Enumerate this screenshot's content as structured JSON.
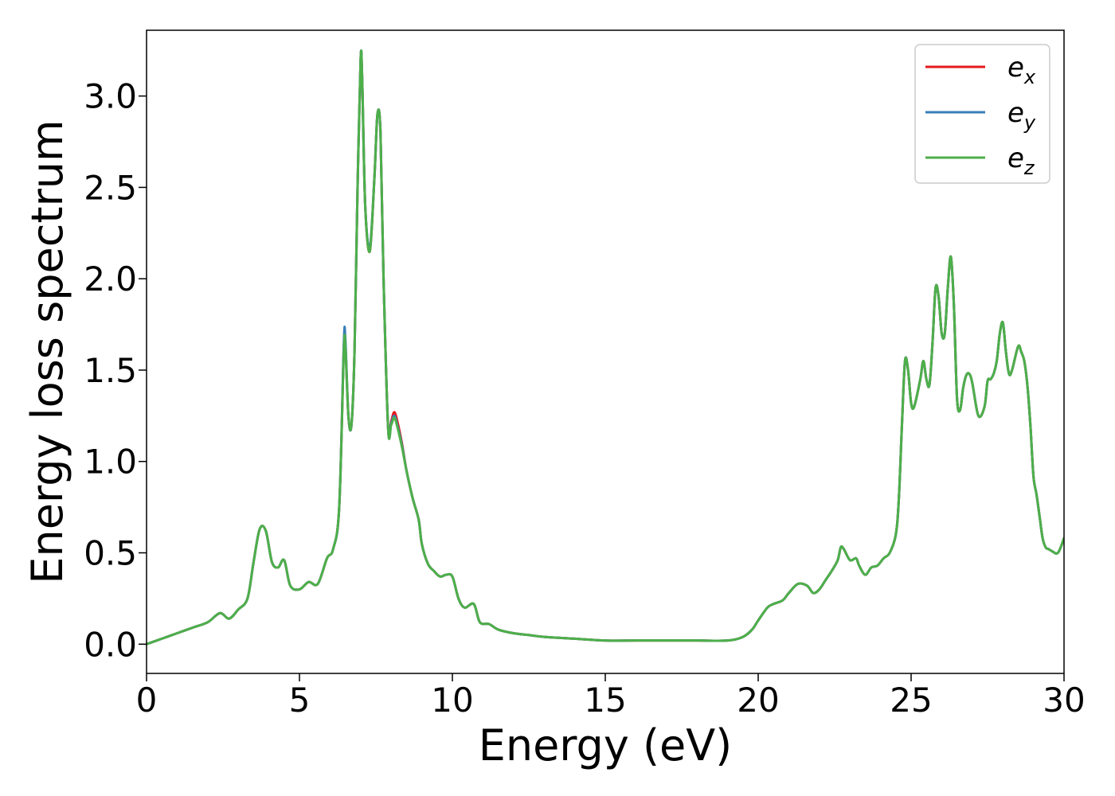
{
  "chart_data": {
    "type": "line",
    "xlabel": "Energy (eV)",
    "ylabel": "Energy loss spectrum",
    "xlim": [
      0,
      30
    ],
    "ylim": [
      -0.16,
      3.36
    ],
    "xticks": [
      0,
      5,
      10,
      15,
      20,
      25,
      30
    ],
    "xtick_labels": [
      "0",
      "5",
      "10",
      "15",
      "20",
      "25",
      "30"
    ],
    "yticks": [
      0.0,
      0.5,
      1.0,
      1.5,
      2.0,
      2.5,
      3.0
    ],
    "ytick_labels": [
      "0.0",
      "0.5",
      "1.0",
      "1.5",
      "2.0",
      "2.5",
      "3.0"
    ],
    "grid": false,
    "legend_position": "top-right",
    "series": [
      {
        "name": "e_x",
        "legend_main": "e",
        "legend_sub": "x",
        "color": "#e41a1c",
        "x": [
          0,
          0.5,
          1.0,
          1.5,
          2.0,
          2.4,
          2.7,
          3.0,
          3.3,
          3.5,
          3.7,
          3.9,
          4.1,
          4.3,
          4.5,
          4.7,
          5.0,
          5.3,
          5.6,
          5.9,
          6.1,
          6.3,
          6.45,
          6.5,
          6.6,
          6.7,
          6.8,
          6.9,
          7.0,
          7.05,
          7.15,
          7.3,
          7.45,
          7.55,
          7.65,
          7.75,
          7.9,
          8.0,
          8.1,
          8.2,
          8.35,
          8.5,
          8.7,
          8.9,
          9.0,
          9.2,
          9.4,
          9.6,
          9.8,
          10.0,
          10.2,
          10.4,
          10.7,
          10.9,
          11.2,
          11.5,
          12.0,
          12.5,
          13.0,
          14.0,
          15.0,
          16.0,
          17.0,
          18.0,
          19.0,
          19.5,
          19.8,
          20.0,
          20.3,
          20.5,
          20.8,
          21.0,
          21.3,
          21.6,
          21.8,
          22.0,
          22.2,
          22.4,
          22.6,
          22.7,
          22.8,
          23.0,
          23.2,
          23.3,
          23.5,
          23.7,
          23.9,
          24.1,
          24.3,
          24.5,
          24.6,
          24.7,
          24.8,
          24.9,
          25.0,
          25.1,
          25.3,
          25.4,
          25.5,
          25.6,
          25.7,
          25.8,
          25.9,
          26.0,
          26.1,
          26.2,
          26.3,
          26.4,
          26.5,
          26.6,
          26.7,
          26.8,
          26.9,
          27.0,
          27.2,
          27.4,
          27.5,
          27.6,
          27.7,
          27.8,
          27.9,
          28.0,
          28.1,
          28.2,
          28.3,
          28.5,
          28.6,
          28.7,
          28.8,
          28.9,
          29.0,
          29.1,
          29.2,
          29.3,
          29.4,
          29.5,
          29.6,
          29.8,
          30.0
        ],
        "y": [
          0.0,
          0.03,
          0.06,
          0.09,
          0.12,
          0.17,
          0.14,
          0.19,
          0.25,
          0.45,
          0.63,
          0.62,
          0.45,
          0.42,
          0.46,
          0.32,
          0.3,
          0.34,
          0.33,
          0.47,
          0.52,
          0.75,
          1.62,
          1.65,
          1.25,
          1.2,
          1.6,
          2.5,
          3.2,
          3.1,
          2.4,
          2.15,
          2.55,
          2.9,
          2.8,
          2.0,
          1.18,
          1.22,
          1.27,
          1.22,
          1.1,
          0.95,
          0.8,
          0.68,
          0.55,
          0.44,
          0.4,
          0.37,
          0.38,
          0.37,
          0.25,
          0.2,
          0.22,
          0.12,
          0.11,
          0.08,
          0.06,
          0.05,
          0.04,
          0.03,
          0.02,
          0.02,
          0.02,
          0.02,
          0.02,
          0.04,
          0.08,
          0.13,
          0.2,
          0.22,
          0.24,
          0.28,
          0.33,
          0.32,
          0.28,
          0.3,
          0.35,
          0.4,
          0.46,
          0.53,
          0.52,
          0.46,
          0.47,
          0.43,
          0.38,
          0.42,
          0.43,
          0.47,
          0.5,
          0.6,
          0.8,
          1.2,
          1.55,
          1.5,
          1.32,
          1.3,
          1.45,
          1.55,
          1.45,
          1.42,
          1.65,
          1.95,
          1.9,
          1.7,
          1.7,
          1.95,
          2.12,
          1.85,
          1.35,
          1.28,
          1.4,
          1.47,
          1.48,
          1.43,
          1.25,
          1.3,
          1.44,
          1.45,
          1.48,
          1.55,
          1.7,
          1.76,
          1.6,
          1.48,
          1.5,
          1.63,
          1.6,
          1.55,
          1.42,
          1.2,
          0.92,
          0.82,
          0.7,
          0.58,
          0.53,
          0.52,
          0.51,
          0.5,
          0.58
        ]
      },
      {
        "name": "e_y",
        "legend_main": "e",
        "legend_sub": "y",
        "color": "#377eb8",
        "x": [
          0,
          0.5,
          1.0,
          1.5,
          2.0,
          2.4,
          2.7,
          3.0,
          3.3,
          3.5,
          3.7,
          3.9,
          4.1,
          4.3,
          4.5,
          4.7,
          5.0,
          5.3,
          5.6,
          5.9,
          6.1,
          6.3,
          6.45,
          6.5,
          6.6,
          6.7,
          6.8,
          6.9,
          7.0,
          7.05,
          7.15,
          7.3,
          7.45,
          7.55,
          7.65,
          7.75,
          7.9,
          8.0,
          8.1,
          8.2,
          8.35,
          8.5,
          8.7,
          8.9,
          9.0,
          9.2,
          9.4,
          9.6,
          9.8,
          10.0,
          10.2,
          10.4,
          10.7,
          10.9,
          11.2,
          11.5,
          12.0,
          12.5,
          13.0,
          14.0,
          15.0,
          16.0,
          17.0,
          18.0,
          19.0,
          19.5,
          19.8,
          20.0,
          20.3,
          20.5,
          20.8,
          21.0,
          21.3,
          21.6,
          21.8,
          22.0,
          22.2,
          22.4,
          22.6,
          22.7,
          22.8,
          23.0,
          23.2,
          23.3,
          23.5,
          23.7,
          23.9,
          24.1,
          24.3,
          24.5,
          24.6,
          24.7,
          24.8,
          24.9,
          25.0,
          25.1,
          25.3,
          25.4,
          25.5,
          25.6,
          25.7,
          25.8,
          25.9,
          26.0,
          26.1,
          26.2,
          26.3,
          26.4,
          26.5,
          26.6,
          26.7,
          26.8,
          26.9,
          27.0,
          27.2,
          27.4,
          27.5,
          27.6,
          27.7,
          27.8,
          27.9,
          28.0,
          28.1,
          28.2,
          28.3,
          28.5,
          28.6,
          28.7,
          28.8,
          28.9,
          29.0,
          29.1,
          29.2,
          29.3,
          29.4,
          29.5,
          29.6,
          29.8,
          30.0
        ],
        "y": [
          0.0,
          0.03,
          0.06,
          0.09,
          0.12,
          0.17,
          0.14,
          0.19,
          0.25,
          0.45,
          0.63,
          0.62,
          0.45,
          0.42,
          0.46,
          0.32,
          0.3,
          0.34,
          0.33,
          0.47,
          0.52,
          0.75,
          1.64,
          1.67,
          1.25,
          1.2,
          1.6,
          2.5,
          3.2,
          3.1,
          2.4,
          2.17,
          2.55,
          2.9,
          2.8,
          2.0,
          1.18,
          1.21,
          1.25,
          1.2,
          1.09,
          0.95,
          0.8,
          0.68,
          0.55,
          0.44,
          0.4,
          0.37,
          0.38,
          0.37,
          0.25,
          0.2,
          0.22,
          0.12,
          0.11,
          0.08,
          0.06,
          0.05,
          0.04,
          0.03,
          0.02,
          0.02,
          0.02,
          0.02,
          0.02,
          0.04,
          0.08,
          0.13,
          0.2,
          0.22,
          0.24,
          0.28,
          0.33,
          0.32,
          0.28,
          0.3,
          0.35,
          0.4,
          0.46,
          0.53,
          0.52,
          0.46,
          0.47,
          0.43,
          0.38,
          0.42,
          0.43,
          0.47,
          0.5,
          0.6,
          0.8,
          1.2,
          1.55,
          1.5,
          1.32,
          1.3,
          1.45,
          1.55,
          1.45,
          1.42,
          1.65,
          1.95,
          1.9,
          1.7,
          1.7,
          1.95,
          2.12,
          1.85,
          1.35,
          1.28,
          1.4,
          1.47,
          1.48,
          1.43,
          1.25,
          1.3,
          1.44,
          1.45,
          1.48,
          1.55,
          1.7,
          1.76,
          1.6,
          1.48,
          1.5,
          1.63,
          1.6,
          1.55,
          1.42,
          1.2,
          0.92,
          0.82,
          0.7,
          0.58,
          0.53,
          0.52,
          0.51,
          0.5,
          0.58
        ]
      },
      {
        "name": "e_z",
        "legend_main": "e",
        "legend_sub": "z",
        "color": "#4daf4a",
        "x": [
          0,
          0.5,
          1.0,
          1.5,
          2.0,
          2.4,
          2.7,
          3.0,
          3.3,
          3.5,
          3.7,
          3.9,
          4.1,
          4.3,
          4.5,
          4.7,
          5.0,
          5.3,
          5.6,
          5.9,
          6.1,
          6.3,
          6.45,
          6.5,
          6.6,
          6.7,
          6.8,
          6.9,
          7.0,
          7.05,
          7.15,
          7.3,
          7.45,
          7.55,
          7.65,
          7.75,
          7.9,
          8.0,
          8.1,
          8.2,
          8.35,
          8.5,
          8.7,
          8.9,
          9.0,
          9.2,
          9.4,
          9.6,
          9.8,
          10.0,
          10.2,
          10.4,
          10.7,
          10.9,
          11.2,
          11.5,
          12.0,
          12.5,
          13.0,
          14.0,
          15.0,
          16.0,
          17.0,
          18.0,
          19.0,
          19.5,
          19.8,
          20.0,
          20.3,
          20.5,
          20.8,
          21.0,
          21.3,
          21.6,
          21.8,
          22.0,
          22.2,
          22.4,
          22.6,
          22.7,
          22.8,
          23.0,
          23.2,
          23.3,
          23.5,
          23.7,
          23.9,
          24.1,
          24.3,
          24.5,
          24.6,
          24.7,
          24.8,
          24.9,
          25.0,
          25.1,
          25.3,
          25.4,
          25.5,
          25.6,
          25.7,
          25.8,
          25.9,
          26.0,
          26.1,
          26.2,
          26.3,
          26.4,
          26.5,
          26.6,
          26.7,
          26.8,
          26.9,
          27.0,
          27.2,
          27.4,
          27.5,
          27.6,
          27.7,
          27.8,
          27.9,
          28.0,
          28.1,
          28.2,
          28.3,
          28.5,
          28.6,
          28.7,
          28.8,
          28.9,
          29.0,
          29.1,
          29.2,
          29.3,
          29.4,
          29.5,
          29.6,
          29.8,
          30.0
        ],
        "y": [
          0.0,
          0.03,
          0.06,
          0.09,
          0.12,
          0.17,
          0.14,
          0.19,
          0.25,
          0.45,
          0.63,
          0.62,
          0.45,
          0.42,
          0.46,
          0.32,
          0.3,
          0.34,
          0.33,
          0.47,
          0.52,
          0.75,
          1.6,
          1.63,
          1.25,
          1.2,
          1.6,
          2.5,
          3.2,
          3.1,
          2.4,
          2.15,
          2.55,
          2.9,
          2.8,
          2.0,
          1.18,
          1.2,
          1.24,
          1.19,
          1.08,
          0.95,
          0.8,
          0.68,
          0.55,
          0.44,
          0.4,
          0.37,
          0.38,
          0.37,
          0.25,
          0.2,
          0.22,
          0.12,
          0.11,
          0.08,
          0.06,
          0.05,
          0.04,
          0.03,
          0.02,
          0.02,
          0.02,
          0.02,
          0.02,
          0.04,
          0.08,
          0.13,
          0.2,
          0.22,
          0.24,
          0.28,
          0.33,
          0.32,
          0.28,
          0.3,
          0.35,
          0.4,
          0.46,
          0.53,
          0.52,
          0.46,
          0.47,
          0.43,
          0.38,
          0.42,
          0.43,
          0.47,
          0.5,
          0.6,
          0.8,
          1.2,
          1.55,
          1.5,
          1.32,
          1.3,
          1.45,
          1.55,
          1.45,
          1.42,
          1.65,
          1.95,
          1.9,
          1.7,
          1.7,
          1.95,
          2.12,
          1.85,
          1.35,
          1.28,
          1.4,
          1.47,
          1.48,
          1.43,
          1.25,
          1.3,
          1.44,
          1.45,
          1.48,
          1.55,
          1.7,
          1.76,
          1.6,
          1.48,
          1.5,
          1.63,
          1.6,
          1.55,
          1.42,
          1.2,
          0.92,
          0.82,
          0.7,
          0.58,
          0.53,
          0.52,
          0.51,
          0.5,
          0.58
        ]
      }
    ]
  }
}
